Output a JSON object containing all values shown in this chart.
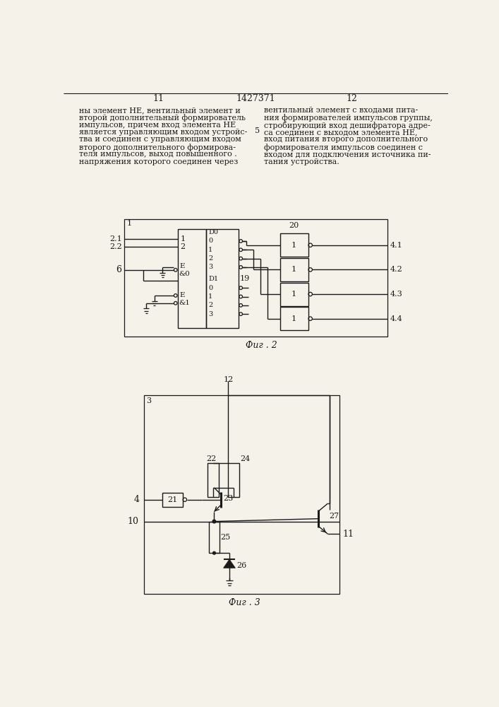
{
  "title": "1427371",
  "p_left": "11",
  "p_right": "12",
  "fig2_label": "Фиг . 2",
  "fig3_label": "Фиг . 3",
  "bg_color": "#f5f2ea",
  "line_color": "#1a1a1a",
  "text_color": "#1a1a1a",
  "left_text_lines": [
    "ны элемент НЕ, вентильный элемент и",
    "второй дополнительный формирователь",
    "импульсов, причем вход элемента НЕ",
    "является управляющим входом устройс-",
    "тва и соединен с управляющим входом",
    "второго дополнительного формирова-",
    "теля импульсов, выход повышенного .",
    "напряжения которого соединен через"
  ],
  "right_text_lines": [
    "вентильный элемент с входами пита-",
    "ния формирователей импульсов группы,",
    "стробирующий вход дешифратора адре-",
    "са соединен с выходом элемента НЕ,",
    "вход питания второго дополнительного",
    "формирователя импульсов соединен с",
    "входом для подключения источника пи-",
    "тания устройства."
  ]
}
